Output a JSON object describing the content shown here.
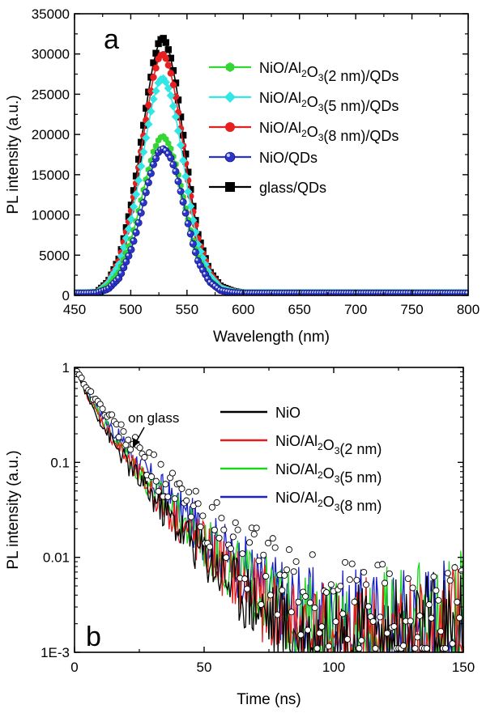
{
  "chart_data": [
    {
      "panel": "a",
      "type": "line",
      "title": "",
      "xlabel": "Wavelength (nm)",
      "ylabel": "PL intensity (a.u.)",
      "xlim": [
        450,
        800
      ],
      "ylim": [
        0,
        35000
      ],
      "x_ticks": [
        "450",
        "500",
        "550",
        "600",
        "650",
        "700",
        "750",
        "800"
      ],
      "y_ticks": [
        "0",
        "5000",
        "10000",
        "15000",
        "20000",
        "25000",
        "30000",
        "35000"
      ],
      "grid": false,
      "legend_position": "top-right",
      "x": [
        450,
        460,
        470,
        480,
        490,
        500,
        505,
        510,
        515,
        520,
        525,
        528,
        530,
        535,
        540,
        545,
        550,
        555,
        560,
        570,
        580,
        590,
        600,
        650,
        700,
        750,
        800
      ],
      "series": [
        {
          "name": "NiO/Al2O3(2 nm)/QDs",
          "legend_label": {
            "a": "NiO/Al",
            "s1": "2",
            "b": "O",
            "s2": "3",
            "c": "(2 nm)/QDs"
          },
          "color": "#33d633",
          "marker": "hexagon",
          "peak": 19800,
          "values": [
            300,
            300,
            350,
            1200,
            3000,
            6800,
            9300,
            12300,
            15200,
            17800,
            19400,
            19800,
            19700,
            18500,
            16300,
            13300,
            10000,
            7000,
            4600,
            1900,
            700,
            400,
            300,
            300,
            300,
            300,
            300
          ]
        },
        {
          "name": "NiO/Al2O3(5 nm)/QDs",
          "legend_label": {
            "a": "NiO/Al",
            "s1": "2",
            "b": "O",
            "s2": "3",
            "c": "(5 nm)/QDs"
          },
          "color": "#33e6e6",
          "marker": "diamond",
          "peak": 27000,
          "values": [
            300,
            300,
            350,
            1500,
            4000,
            9200,
            12700,
            16700,
            20700,
            24300,
            26600,
            27000,
            26900,
            25200,
            22200,
            18200,
            13700,
            9600,
            6200,
            2500,
            900,
            450,
            300,
            300,
            300,
            300,
            300
          ]
        },
        {
          "name": "NiO/Al2O3(8 nm)/QDs",
          "legend_label": {
            "a": "NiO/Al",
            "s1": "2",
            "b": "O",
            "s2": "3",
            "c": "(8 nm)/QDs"
          },
          "color": "#e62020",
          "marker": "circle",
          "peak": 30000,
          "values": [
            300,
            300,
            350,
            1600,
            4400,
            10200,
            14100,
            18600,
            23000,
            27000,
            29600,
            30000,
            29900,
            28000,
            24700,
            20200,
            15200,
            10700,
            6900,
            2800,
            1000,
            500,
            300,
            300,
            300,
            300,
            300
          ]
        },
        {
          "name": "NiO/QDs",
          "legend_label": {
            "a": "NiO/QDs",
            "s1": "",
            "b": "",
            "s2": "",
            "c": ""
          },
          "color": "#2a35c8",
          "marker": "sphere",
          "peak": 18200,
          "values": [
            250,
            250,
            300,
            800,
            2200,
            5500,
            7900,
            10700,
            13600,
            16200,
            17900,
            18200,
            18200,
            17300,
            15400,
            12600,
            9500,
            6600,
            4200,
            1700,
            600,
            350,
            250,
            250,
            250,
            250,
            250
          ]
        },
        {
          "name": "glass/QDs",
          "legend_label": {
            "a": "glass/QDs",
            "s1": "",
            "b": "",
            "s2": "",
            "c": ""
          },
          "color": "#000000",
          "marker": "square",
          "peak": 32000,
          "values": [
            300,
            300,
            380,
            1700,
            4700,
            10900,
            15000,
            19800,
            24600,
            28800,
            31500,
            32000,
            31900,
            29900,
            26400,
            21600,
            16300,
            11400,
            7400,
            3000,
            1100,
            550,
            300,
            300,
            300,
            300,
            300
          ]
        }
      ],
      "annotation": "a"
    },
    {
      "panel": "b",
      "type": "line",
      "title": "",
      "xlabel": "Time (ns)",
      "ylabel": "PL intensity (a.u.)",
      "xlim": [
        0,
        150
      ],
      "ylim": [
        0.001,
        1
      ],
      "yscale": "log",
      "x_ticks": [
        "0",
        "50",
        "100",
        "150"
      ],
      "y_ticks": [
        "1E-3",
        "0.01",
        "0.1",
        "1"
      ],
      "grid": false,
      "legend_position": "top-right",
      "x": [
        0,
        5,
        10,
        15,
        20,
        25,
        30,
        35,
        40,
        45,
        50,
        55,
        60,
        65,
        70,
        75,
        80,
        85,
        90,
        95,
        100,
        105,
        110,
        115,
        120,
        125,
        130,
        135,
        140,
        145,
        150
      ],
      "series": [
        {
          "name": "NiO",
          "legend_label": {
            "a": "NiO",
            "s1": "",
            "b": "",
            "s2": "",
            "c": ""
          },
          "color": "#000000",
          "values": [
            1.0,
            0.48,
            0.27,
            0.16,
            0.1,
            0.065,
            0.044,
            0.03,
            0.021,
            0.015,
            0.011,
            0.008,
            0.0058,
            0.0043,
            0.0033,
            0.0025,
            0.002,
            0.0016,
            0.0014,
            0.0013,
            0.0012,
            0.0012,
            0.0012,
            0.0012,
            0.0012,
            0.0012,
            0.0012,
            0.0012,
            0.0012,
            0.0012,
            0.0012
          ]
        },
        {
          "name": "NiO/Al2O3(2 nm)",
          "legend_label": {
            "a": "NiO/Al",
            "s1": "2",
            "b": "O",
            "s2": "3",
            "c": "(2 nm)"
          },
          "color": "#e61a1a",
          "values": [
            1.0,
            0.5,
            0.29,
            0.175,
            0.11,
            0.072,
            0.049,
            0.034,
            0.024,
            0.017,
            0.0125,
            0.0092,
            0.0068,
            0.005,
            0.0038,
            0.003,
            0.0024,
            0.002,
            0.0017,
            0.0015,
            0.0014,
            0.0014,
            0.0014,
            0.0014,
            0.0014,
            0.0014,
            0.0014,
            0.0014,
            0.0014,
            0.0014,
            0.0014
          ]
        },
        {
          "name": "NiO/Al2O3(5 nm)",
          "legend_label": {
            "a": "NiO/Al",
            "s1": "2",
            "b": "O",
            "s2": "3",
            "c": "(5 nm)"
          },
          "color": "#1ad61a",
          "values": [
            1.0,
            0.52,
            0.31,
            0.19,
            0.12,
            0.08,
            0.055,
            0.038,
            0.027,
            0.019,
            0.014,
            0.0105,
            0.0079,
            0.006,
            0.0046,
            0.0036,
            0.0029,
            0.0024,
            0.002,
            0.0018,
            0.0016,
            0.0016,
            0.0016,
            0.0016,
            0.0016,
            0.0016,
            0.0016,
            0.0016,
            0.0016,
            0.0016,
            0.0016
          ]
        },
        {
          "name": "NiO/Al2O3(8 nm)",
          "legend_label": {
            "a": "NiO/Al",
            "s1": "2",
            "b": "O",
            "s2": "3",
            "c": "(8 nm)"
          },
          "color": "#1a22c8",
          "values": [
            1.0,
            0.55,
            0.34,
            0.215,
            0.14,
            0.094,
            0.065,
            0.046,
            0.033,
            0.024,
            0.0175,
            0.013,
            0.0098,
            0.0075,
            0.0058,
            0.0045,
            0.0036,
            0.003,
            0.0025,
            0.0022,
            0.002,
            0.0019,
            0.0018,
            0.0018,
            0.0018,
            0.0018,
            0.0018,
            0.0018,
            0.0018,
            0.0018,
            0.0018
          ]
        },
        {
          "name": "on glass",
          "legend_label": {
            "a": "",
            "s1": "",
            "b": "",
            "s2": "",
            "c": ""
          },
          "color": "#000000",
          "marker": "open-circle",
          "values": [
            1.0,
            0.6,
            0.39,
            0.26,
            0.18,
            0.125,
            0.088,
            0.063,
            0.046,
            0.034,
            0.025,
            0.019,
            0.0145,
            0.011,
            0.0086,
            0.0068,
            0.0054,
            0.0044,
            0.0037,
            0.0032,
            0.0028,
            0.0026,
            0.0025,
            0.0024,
            0.0024,
            0.0024,
            0.0024,
            0.0024,
            0.0024,
            0.0024,
            0.0024
          ]
        }
      ],
      "annotation": "b",
      "arrow_annotation": "on glass"
    }
  ]
}
